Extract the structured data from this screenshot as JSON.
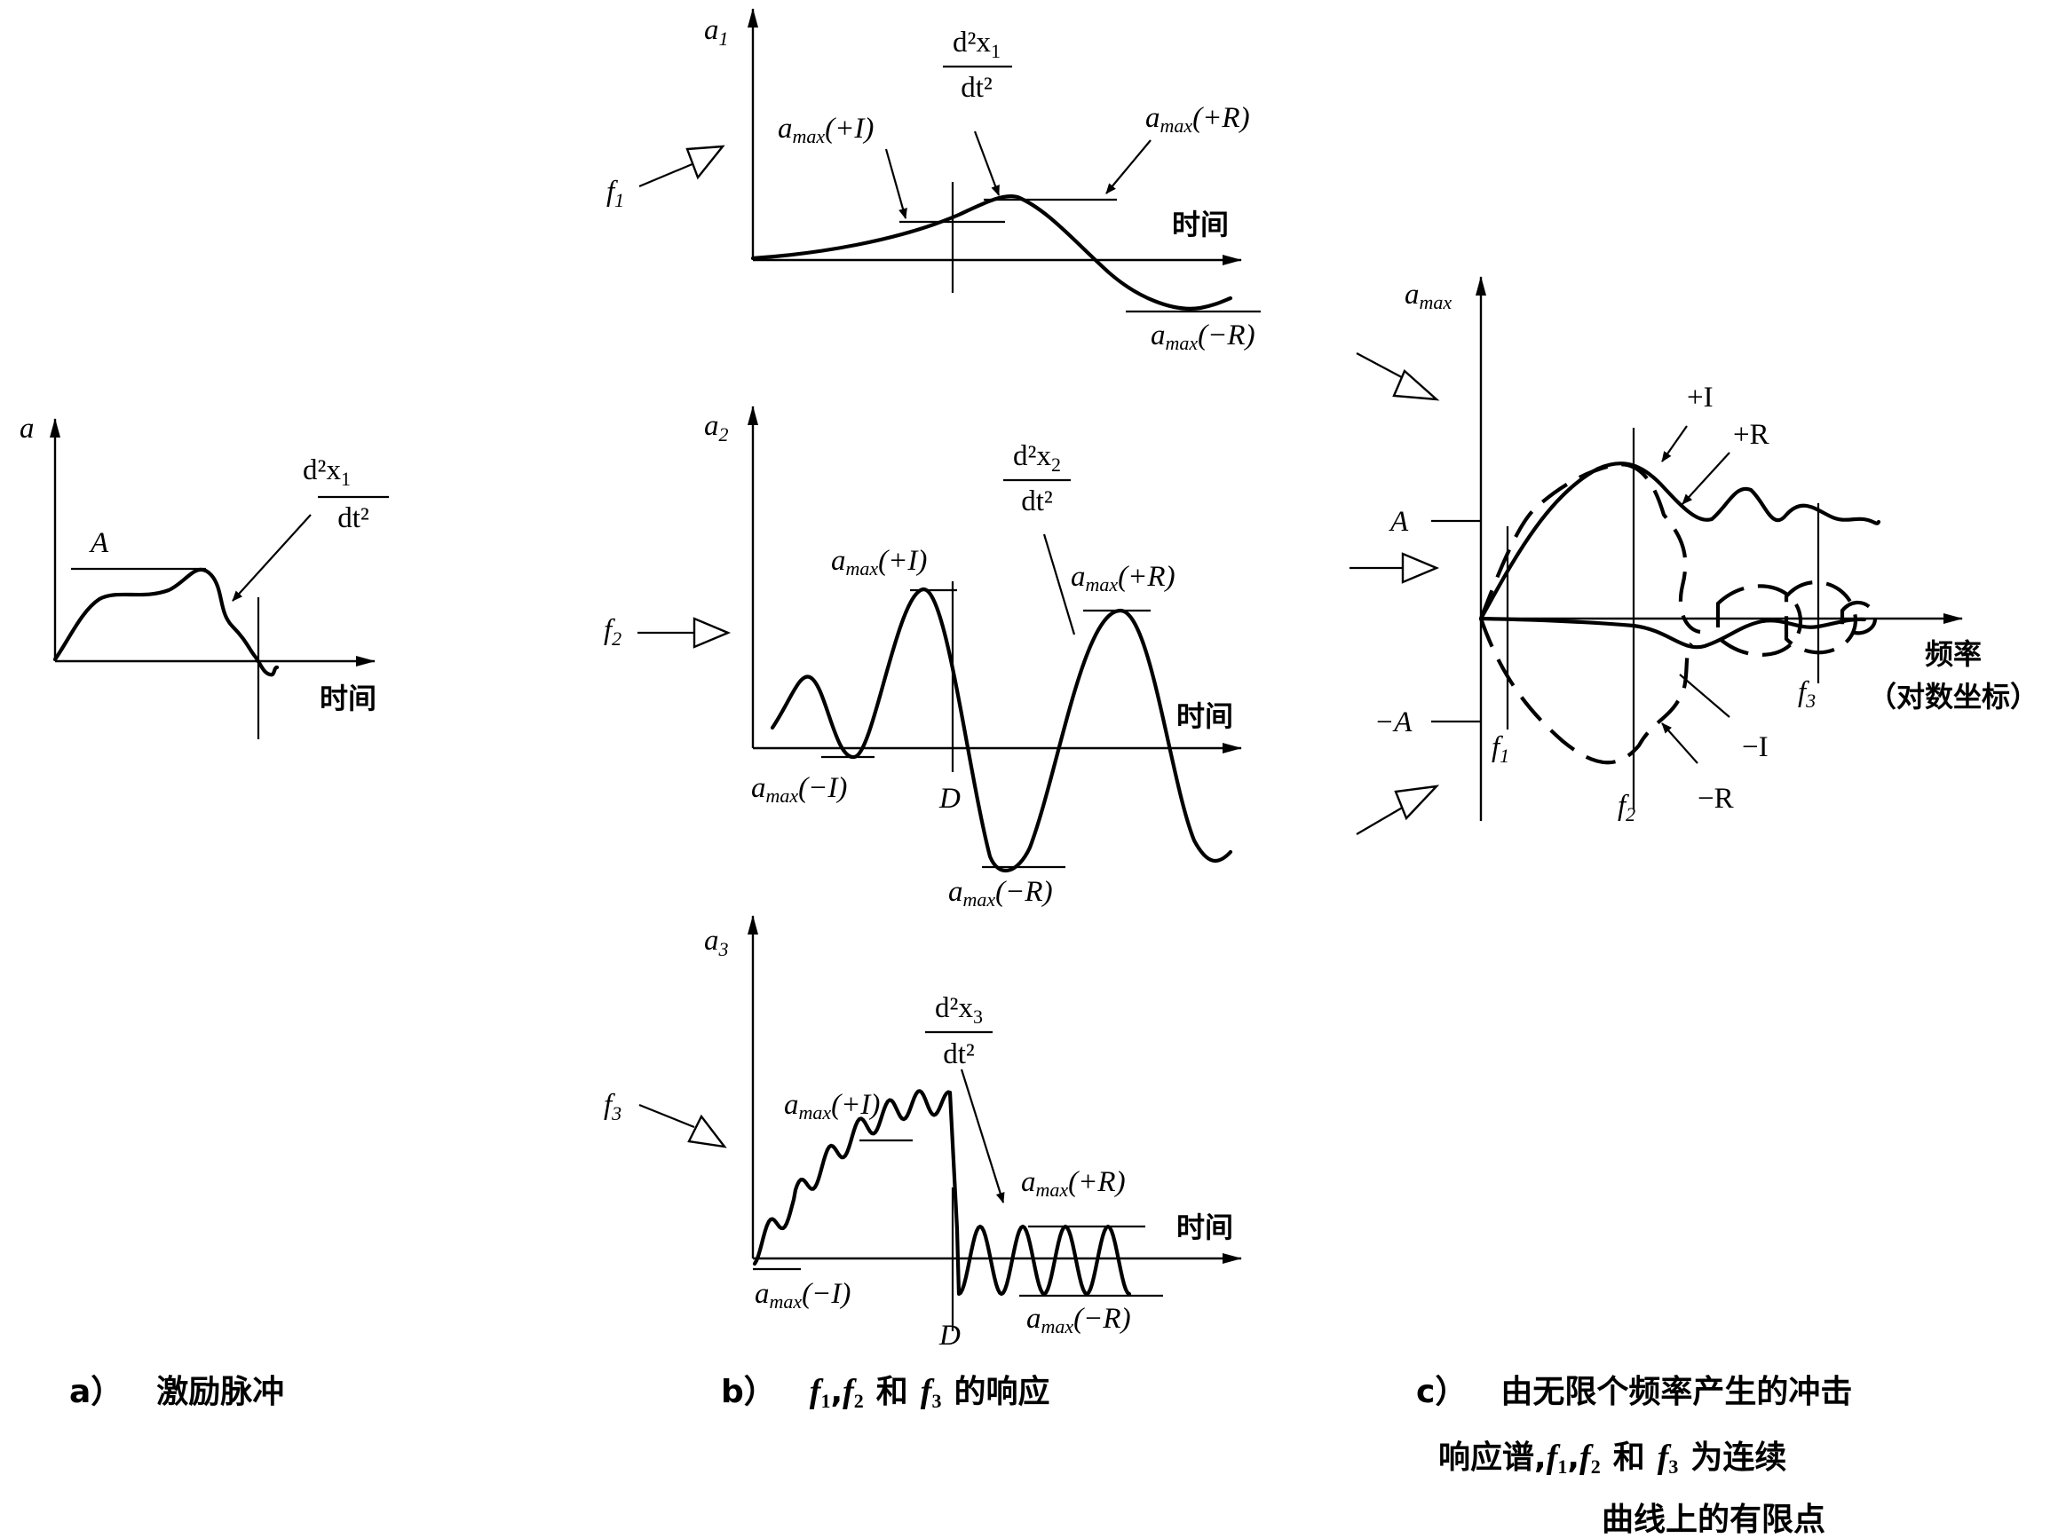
{
  "panel_a": {
    "y_axis": "a",
    "level": "A",
    "curve_num": "d²x",
    "curve_num_sub": "1",
    "curve_den": "dt²",
    "x_axis": "时间",
    "caption_letter": "a）",
    "caption": "激励脉冲"
  },
  "panel_b": {
    "r1": {
      "y_axis": "a",
      "y_sub": "1",
      "input": "f",
      "input_sub": "1",
      "curve_num": "d²x",
      "curve_num_sub": "1",
      "curve_den": "dt²",
      "pos_i": "(+I)",
      "pos_r": "(+R)",
      "neg_r": "(−R)",
      "x_axis": "时间"
    },
    "r2": {
      "y_axis": "a",
      "y_sub": "2",
      "input": "f",
      "input_sub": "2",
      "curve_num": "d²x",
      "curve_num_sub": "2",
      "curve_den": "dt²",
      "pos_i": "(+I)",
      "pos_r": "(+R)",
      "neg_i": "(−I)",
      "neg_r": "(−R)",
      "duration": "D",
      "x_axis": "时间"
    },
    "r3": {
      "y_axis": "a",
      "y_sub": "3",
      "input": "f",
      "input_sub": "3",
      "curve_num": "d²x",
      "curve_num_sub": "3",
      "curve_den": "dt²",
      "pos_i": "(+I)",
      "pos_r": "(+R)",
      "neg_i": "(−I)",
      "neg_r": "(−R)",
      "duration": "D",
      "x_axis": "时间"
    },
    "amax_base": "a",
    "amax_sub": "max",
    "caption_letter": "b）",
    "caption_f": "f",
    "caption_sub1": "1",
    "caption_sub2": "2",
    "caption_sub3": "3",
    "caption_sep": ",",
    "caption_and": "和",
    "caption_tail": "的响应"
  },
  "panel_c": {
    "y_axis_base": "a",
    "y_axis_sub": "max",
    "level_pos": "A",
    "level_neg": "−A",
    "pos_i": "+I",
    "pos_r": "+R",
    "neg_i": "−I",
    "neg_r": "−R",
    "f": "f",
    "sub1": "1",
    "sub2": "2",
    "sub3": "3",
    "x_axis_line1": "频率",
    "x_axis_line2": "（对数坐标）",
    "caption_letter": "c）",
    "caption_line1": "由无限个频率产生的冲击",
    "caption_line2_pre": "响应谱,",
    "caption_line2_post": "为连续",
    "caption_and": "和",
    "caption_sep": ",",
    "caption_line3": "曲线上的有限点"
  }
}
